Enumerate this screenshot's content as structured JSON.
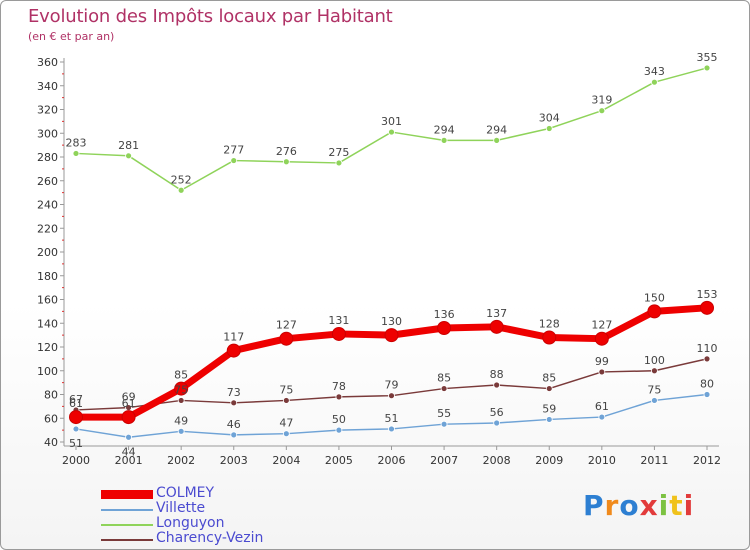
{
  "title": "Evolution des Impôts locaux par Habitant",
  "subtitle": "(en € et par an)",
  "logo_text": "Proxiti",
  "chart_data": {
    "type": "line",
    "title": "Evolution des Impôts locaux par Habitant",
    "subtitle": "(en € et par an)",
    "xlabel": "",
    "ylabel": "",
    "x": [
      "2000",
      "2001",
      "2002",
      "2003",
      "2004",
      "2005",
      "2006",
      "2007",
      "2008",
      "2009",
      "2010",
      "2011",
      "2012"
    ],
    "ylim": [
      40,
      360
    ],
    "yticks": [
      40,
      60,
      80,
      100,
      120,
      140,
      160,
      180,
      200,
      220,
      240,
      260,
      280,
      300,
      320,
      340,
      360
    ],
    "grid": false,
    "legend_position": "bottom-left",
    "series": [
      {
        "name": "COLMEY",
        "color": "#ee0000",
        "values": [
          61,
          61,
          85,
          117,
          127,
          131,
          130,
          136,
          137,
          128,
          127,
          150,
          153
        ]
      },
      {
        "name": "Villette",
        "color": "#6fa3d6",
        "values": [
          51,
          44,
          49,
          46,
          47,
          50,
          51,
          55,
          56,
          59,
          61,
          75,
          80
        ]
      },
      {
        "name": "Longuyon",
        "color": "#8fd35a",
        "values": [
          283,
          281,
          252,
          277,
          276,
          275,
          301,
          294,
          294,
          304,
          319,
          343,
          355
        ]
      },
      {
        "name": "Charency-Vezin",
        "color": "#7a3a3a",
        "values": [
          67,
          69,
          75,
          73,
          75,
          78,
          79,
          85,
          88,
          85,
          99,
          100,
          110
        ]
      }
    ]
  }
}
